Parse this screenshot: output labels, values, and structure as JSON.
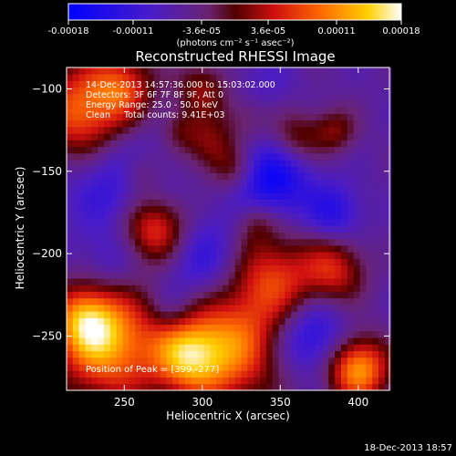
{
  "chart_data": {
    "type": "heatmap",
    "title": "Reconstructed RHESSI Image",
    "xlabel": "Heliocentric X (arcsec)",
    "ylabel": "Heliocentric Y (arcsec)",
    "xlim": [
      213,
      420
    ],
    "ylim": [
      -283,
      -87
    ],
    "x_ticks": [
      250,
      300,
      350,
      400
    ],
    "y_ticks": [
      -100,
      -150,
      -200,
      -250
    ],
    "colorbar": {
      "range": [
        -0.00018,
        0.00018
      ],
      "ticks": [
        -0.00018,
        -0.00011,
        -3.6e-05,
        3.6e-05,
        0.00011,
        0.00018
      ],
      "tick_labels": [
        "-0.00018",
        "-0.00011",
        "-3.6e-05",
        "3.6e-05",
        "0.00011",
        "0.00018"
      ],
      "unit_label": "(photons cm⁻² s⁻¹ asec⁻²)",
      "colors": [
        "#0000ff",
        "#5a2bd6",
        "#7a2040",
        "#c01010",
        "#ff5a00",
        "#ffb000",
        "#ffffff"
      ]
    },
    "annotations": [
      "14-Dec-2013 14:57:36.000 to 15:03:02.000",
      "Detectors: 3F 6F 7F 8F 9F, Att 0",
      "Energy Range: 25.0 - 50.0 keV",
      "Clean     Total counts: 9.41E+03"
    ],
    "peak_label": "Position of Peak = [399,-277]",
    "blobs": [
      {
        "x": 225,
        "y": -115,
        "value": 0.00016,
        "radius": 22
      },
      {
        "x": 250,
        "y": -98,
        "value": 9e-05,
        "radius": 14
      },
      {
        "x": 300,
        "y": -100,
        "value": 8e-05,
        "radius": 12
      },
      {
        "x": 330,
        "y": -115,
        "value": 7e-05,
        "radius": 12
      },
      {
        "x": 360,
        "y": -130,
        "value": 8e-05,
        "radius": 12
      },
      {
        "x": 305,
        "y": -135,
        "value": 8e-05,
        "radius": 12
      },
      {
        "x": 385,
        "y": -125,
        "value": 7e-05,
        "radius": 10
      },
      {
        "x": 270,
        "y": -185,
        "value": 0.00014,
        "radius": 15
      },
      {
        "x": 345,
        "y": -215,
        "value": 0.00012,
        "radius": 20
      },
      {
        "x": 385,
        "y": -210,
        "value": 0.0001,
        "radius": 14
      },
      {
        "x": 260,
        "y": -150,
        "value": 6e-05,
        "radius": 10
      },
      {
        "x": 335,
        "y": -180,
        "value": 6e-05,
        "radius": 10
      },
      {
        "x": 240,
        "y": -255,
        "value": 0.00017,
        "radius": 24
      },
      {
        "x": 225,
        "y": -240,
        "value": 0.00012,
        "radius": 14
      },
      {
        "x": 315,
        "y": -258,
        "value": 0.00016,
        "radius": 24
      },
      {
        "x": 290,
        "y": -262,
        "value": 0.00012,
        "radius": 15
      },
      {
        "x": 400,
        "y": -270,
        "value": 0.00018,
        "radius": 14
      },
      {
        "x": 320,
        "y": -150,
        "value": 6e-05,
        "radius": 10
      },
      {
        "x": 285,
        "y": -125,
        "value": 5e-05,
        "radius": 9
      },
      {
        "x": 245,
        "y": -150,
        "value": -0.00011,
        "radius": 24
      },
      {
        "x": 345,
        "y": -155,
        "value": -0.00014,
        "radius": 18
      },
      {
        "x": 335,
        "y": -105,
        "value": -8e-05,
        "radius": 14
      },
      {
        "x": 300,
        "y": -205,
        "value": -0.0001,
        "radius": 20
      },
      {
        "x": 370,
        "y": -250,
        "value": -0.00012,
        "radius": 16
      },
      {
        "x": 385,
        "y": -175,
        "value": -0.0001,
        "radius": 12
      },
      {
        "x": 240,
        "y": -205,
        "value": -7e-05,
        "radius": 14
      },
      {
        "x": 280,
        "y": -235,
        "value": -6e-05,
        "radius": 10
      }
    ]
  },
  "footer": {
    "timestamp": "18-Dec-2013 18:57"
  }
}
